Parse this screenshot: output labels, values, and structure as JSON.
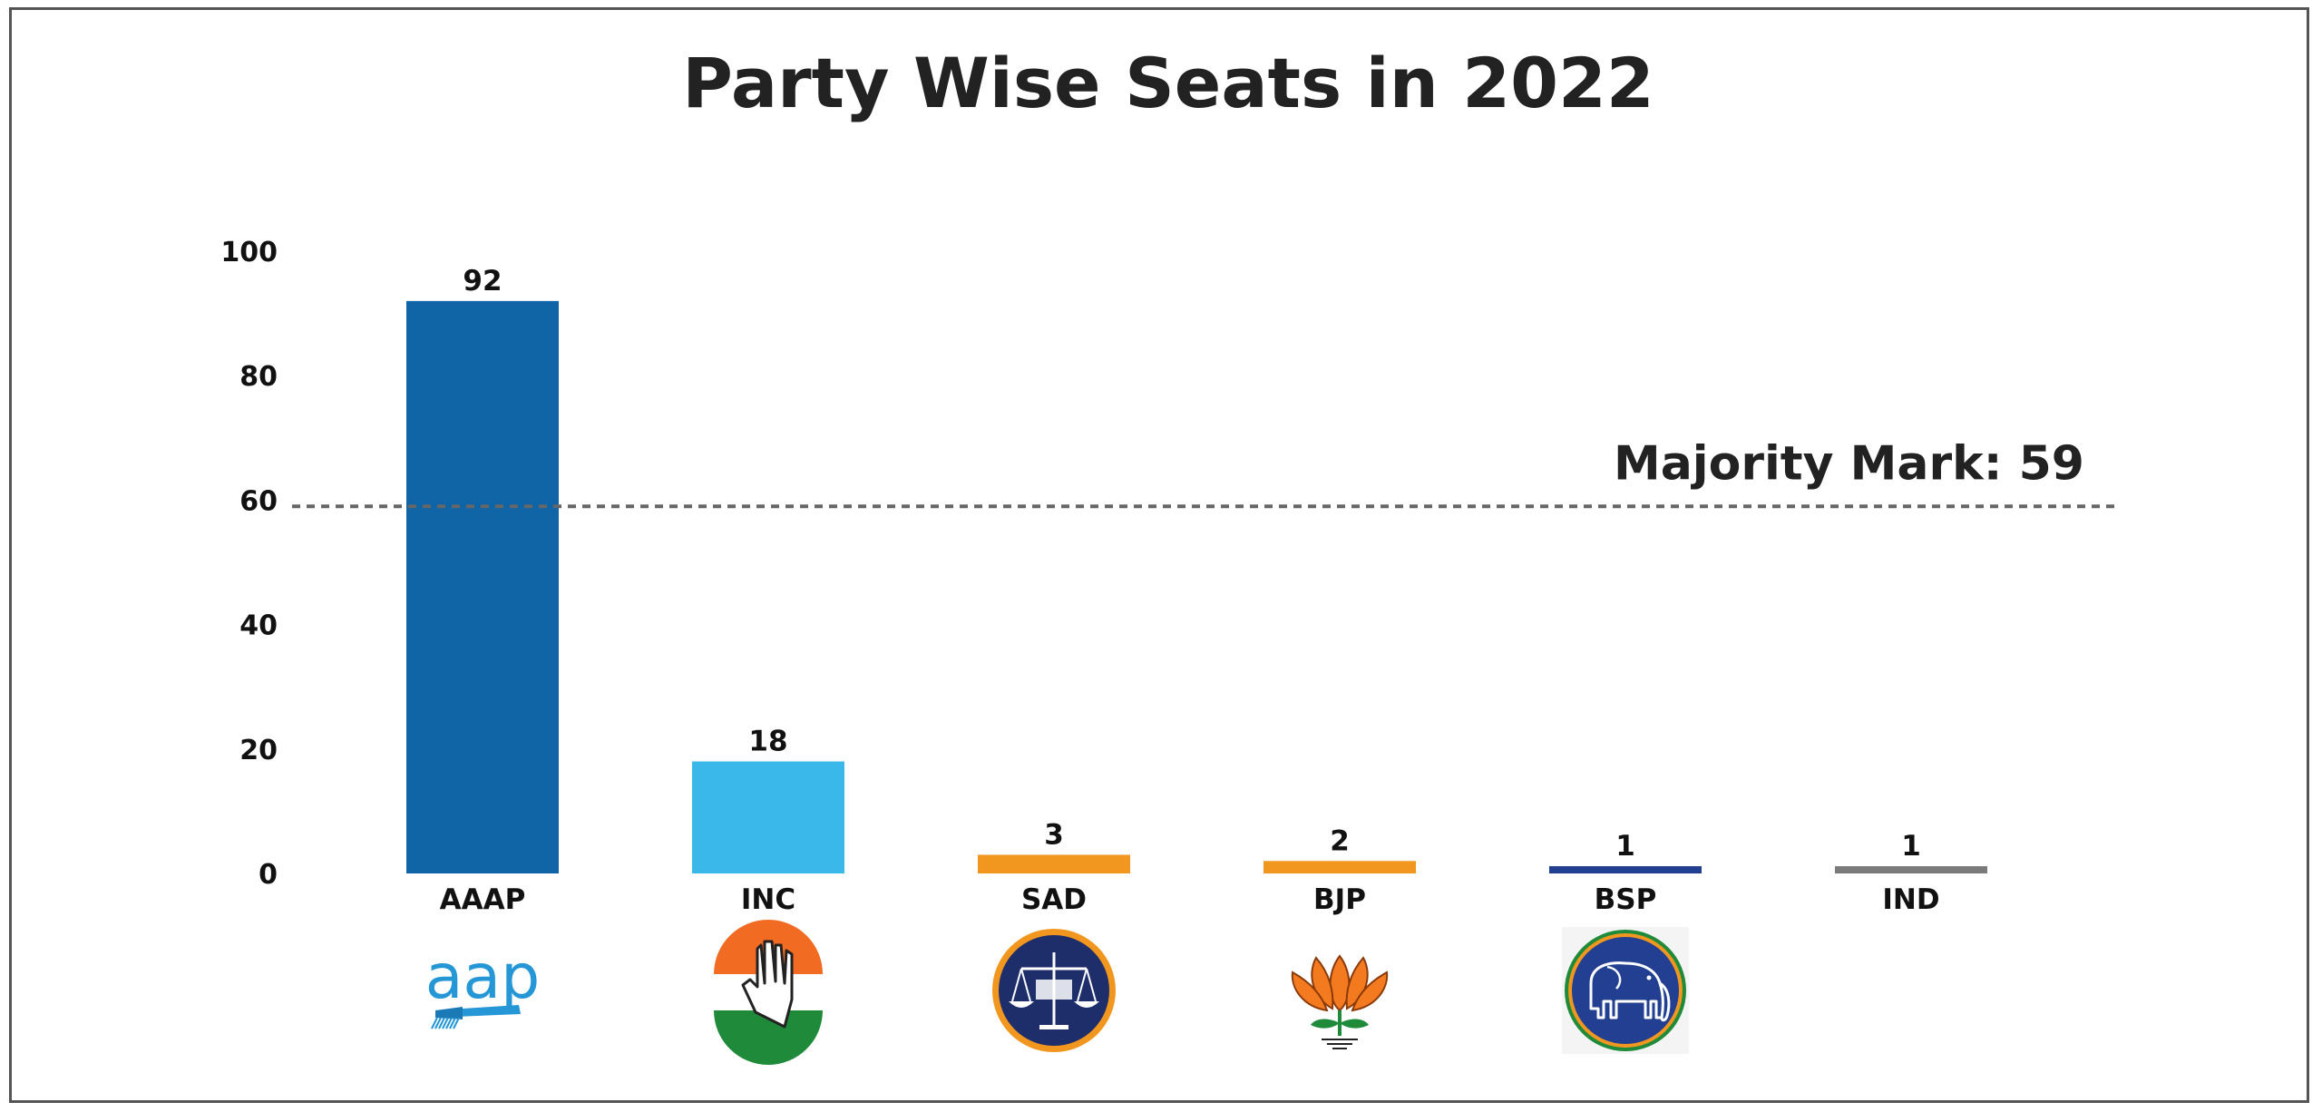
{
  "chart_data": {
    "type": "bar",
    "title": "Party Wise Seats in 2022",
    "xlabel": "",
    "ylabel": "",
    "ylim": [
      0,
      100
    ],
    "yticks": [
      0,
      20,
      40,
      60,
      80,
      100
    ],
    "categories": [
      "AAAP",
      "INC",
      "SAD",
      "BJP",
      "BSP",
      "IND"
    ],
    "values": [
      92,
      18,
      3,
      2,
      1,
      1
    ],
    "colors": [
      "#0f65a6",
      "#3bb8ea",
      "#f1961f",
      "#f1961f",
      "#223f92",
      "#7b7b7b"
    ],
    "grid": false,
    "reference_line": {
      "value": 59,
      "label": "Majority Mark: 59",
      "style": "dashed",
      "color": "#666666"
    },
    "logos": [
      {
        "party": "AAAP",
        "icon": "aap-broom-logo",
        "text": "aap"
      },
      {
        "party": "INC",
        "icon": "congress-hand-logo"
      },
      {
        "party": "SAD",
        "icon": "akali-dal-scales-logo"
      },
      {
        "party": "BJP",
        "icon": "bjp-lotus-logo"
      },
      {
        "party": "BSP",
        "icon": "bsp-elephant-logo"
      }
    ]
  }
}
